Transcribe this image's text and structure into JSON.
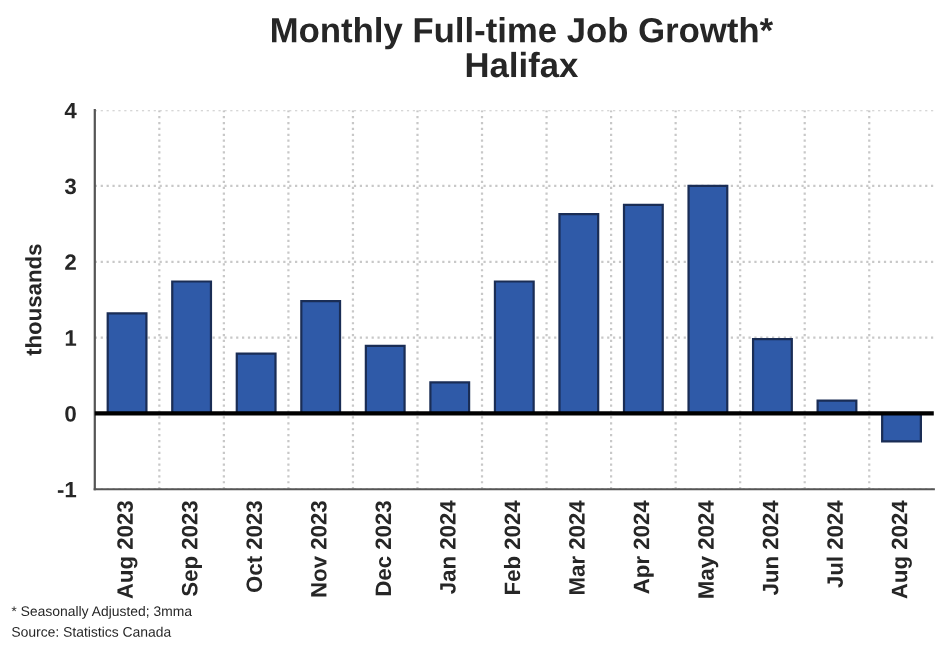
{
  "chart_data": {
    "type": "bar",
    "title": "Monthly Full-time Job Growth*\nHalifax",
    "ylabel": "thousands",
    "categories": [
      "Aug 2023",
      "Sep 2023",
      "Oct 2023",
      "Nov 2023",
      "Dec 2023",
      "Jan 2024",
      "Feb 2024",
      "Mar 2024",
      "Apr 2024",
      "May 2024",
      "Jun 2024",
      "Jul 2024",
      "Aug 2024"
    ],
    "values": [
      1.32,
      1.74,
      0.79,
      1.48,
      0.89,
      0.41,
      1.74,
      2.63,
      2.75,
      3.0,
      0.98,
      0.17,
      -0.37
    ],
    "color": "#2f5aa8",
    "ylim": [
      -1,
      4
    ],
    "yticks": [
      {
        "value": -1,
        "label": "-1"
      },
      0,
      1,
      2,
      3,
      4
    ],
    "grid": true,
    "ref_lines": [
      {
        "axis": "y",
        "value": 0,
        "color": "#000000"
      }
    ],
    "annotations": [
      "* Seasonally Adjusted; 3mma",
      "Source: Statistics Canada"
    ]
  }
}
